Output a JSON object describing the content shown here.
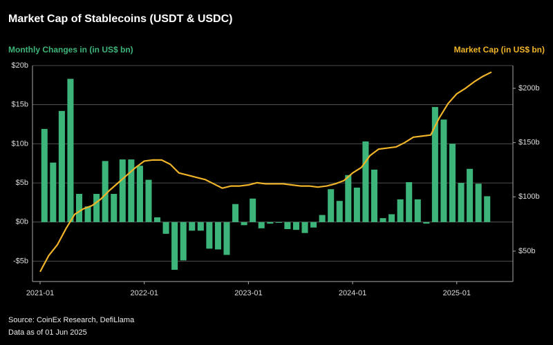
{
  "chart_data": {
    "type": "bar-line",
    "title": "Market Cap of Stablecoins (USDT & USDC)",
    "y_label": "Monthly Changes in (in US$ bn)",
    "y2_label": "Market Cap (in US$ bn)",
    "source": "Source: CoinEx Research, DefiLlama",
    "note": "Data as of 01 Jun 2025",
    "categories": [
      "2021-01",
      null,
      null,
      null,
      null,
      null,
      null,
      null,
      null,
      null,
      null,
      null,
      "2022-01",
      null,
      null,
      null,
      null,
      null,
      null,
      null,
      null,
      null,
      null,
      null,
      "2023-01",
      null,
      null,
      null,
      null,
      null,
      null,
      null,
      null,
      null,
      null,
      null,
      "2024-01",
      null,
      null,
      null,
      null,
      null,
      null,
      null,
      null,
      null,
      null,
      null,
      "2025-01",
      null,
      null,
      null,
      null
    ],
    "series": [
      {
        "name": "Monthly Changes in (in US$ bn)",
        "type": "bar",
        "color": "#3db57a",
        "axis": "y",
        "values": [
          11.9,
          7.6,
          14.2,
          18.3,
          3.6,
          2.0,
          3.6,
          7.8,
          3.6,
          8.0,
          8.0,
          7.2,
          5.4,
          0.6,
          -1.5,
          -6.1,
          -4.9,
          -1.1,
          -1.1,
          -3.4,
          -3.5,
          -4.2,
          2.3,
          -0.4,
          3.0,
          -0.8,
          -0.2,
          -0.1,
          -0.9,
          -1.0,
          -1.4,
          -0.7,
          0.9,
          4.2,
          2.7,
          6.0,
          4.4,
          10.3,
          6.7,
          0.5,
          1.0,
          2.9,
          5.1,
          2.9,
          -0.2,
          14.7,
          13.1,
          10.0,
          5.0,
          6.8,
          4.9,
          3.3,
          null
        ]
      },
      {
        "name": "Market Cap (in US$ bn)",
        "type": "line",
        "color": "#f0b429",
        "axis": "y2",
        "values": [
          31,
          46,
          56,
          71,
          84,
          89,
          92,
          98,
          106,
          113,
          120,
          127,
          133,
          134,
          134,
          130,
          122,
          120,
          118,
          116,
          112,
          108,
          110,
          110,
          111,
          113,
          112,
          112,
          112,
          111,
          110,
          110,
          109,
          110,
          112,
          115,
          122,
          127,
          138,
          144,
          145,
          146,
          150,
          155,
          156,
          157,
          173,
          186,
          195,
          200,
          206,
          211,
          215
        ]
      }
    ],
    "ylim": [
      -7.6,
      20
    ],
    "yticks": [
      {
        "value": -5,
        "label": "-$5b"
      },
      {
        "value": 0,
        "label": "$0b"
      },
      {
        "value": 5,
        "label": "$5b"
      },
      {
        "value": 10,
        "label": "$10b"
      },
      {
        "value": 15,
        "label": "$15b"
      },
      {
        "value": 20,
        "label": "$20b"
      }
    ],
    "y2lim": [
      22,
      221
    ],
    "y2ticks": [
      {
        "value": 50,
        "label": "$50b"
      },
      {
        "value": 100,
        "label": "$100b"
      },
      {
        "value": 150,
        "label": "$150b"
      },
      {
        "value": 200,
        "label": "$200b"
      }
    ],
    "grid": true
  }
}
